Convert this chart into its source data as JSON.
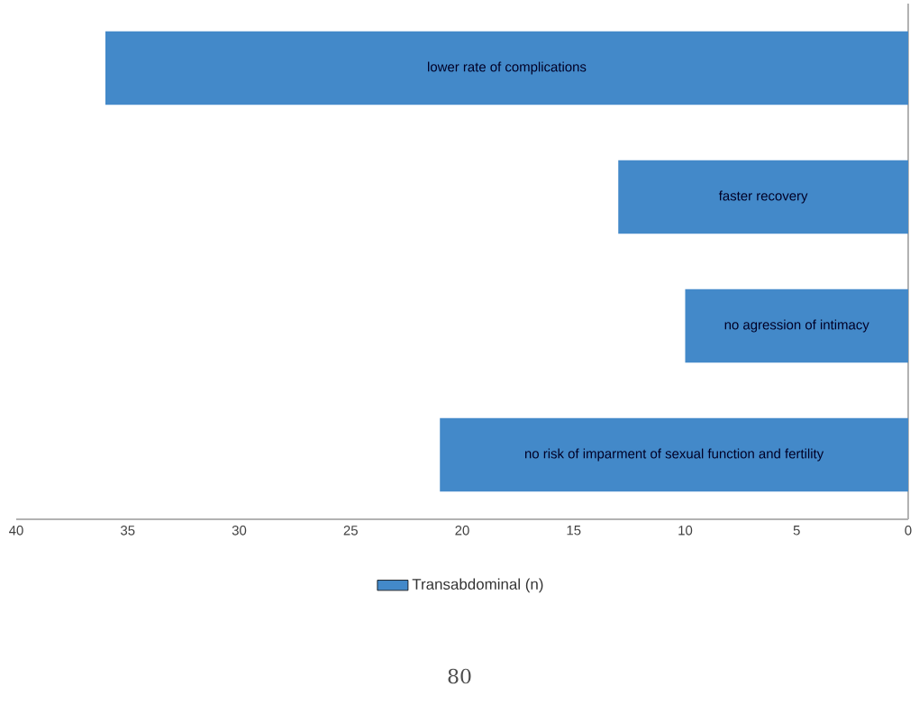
{
  "chart_data": {
    "type": "bar",
    "orientation": "horizontal",
    "categories": [
      "lower rate of complications",
      "faster recovery",
      "no agression of intimacy",
      "no risk of imparment of sexual function and fertility"
    ],
    "series": [
      {
        "name": "Transabdominal (n)",
        "color": "#4389c9",
        "values": [
          36,
          13,
          10,
          21
        ]
      }
    ],
    "xlim": [
      40,
      0
    ],
    "xticks": [
      40,
      35,
      30,
      25,
      20,
      15,
      10,
      5,
      0
    ],
    "grid": false,
    "legend": "bottom",
    "annotations": [
      "80"
    ]
  }
}
